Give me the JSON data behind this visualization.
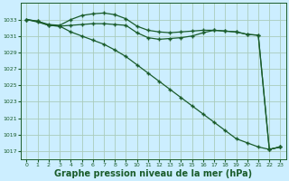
{
  "background_color": "#cceeff",
  "grid_color": "#aaccbb",
  "line_color": "#1a5c2a",
  "marker_color": "#1a5c2a",
  "xlabel": "Graphe pression niveau de la mer (hPa)",
  "xlabel_fontsize": 7,
  "ylim": [
    1016,
    1035
  ],
  "xlim": [
    -0.5,
    23.5
  ],
  "yticks": [
    1017,
    1019,
    1021,
    1023,
    1025,
    1027,
    1029,
    1031,
    1033
  ],
  "xticks": [
    0,
    1,
    2,
    3,
    4,
    5,
    6,
    7,
    8,
    9,
    10,
    11,
    12,
    13,
    14,
    15,
    16,
    17,
    18,
    19,
    20,
    21,
    22,
    23
  ],
  "series1_x": [
    0,
    1,
    2,
    3,
    4,
    5,
    6,
    7,
    8,
    9,
    10,
    11,
    12,
    13,
    14,
    15,
    16,
    17,
    18,
    19,
    20,
    21,
    22,
    23
  ],
  "series1_y": [
    1033.0,
    1032.8,
    1032.4,
    1032.3,
    1033.0,
    1033.5,
    1033.7,
    1033.8,
    1033.6,
    1033.1,
    1032.2,
    1031.7,
    1031.5,
    1031.4,
    1031.5,
    1031.6,
    1031.7,
    1031.7,
    1031.6,
    1031.5,
    1031.2,
    1031.1,
    1017.2,
    1017.5
  ],
  "series2_x": [
    0,
    1,
    2,
    3,
    4,
    5,
    6,
    7,
    8,
    9,
    10,
    11,
    12,
    13,
    14,
    15,
    16,
    17,
    18,
    19,
    20,
    21,
    22,
    23
  ],
  "series2_y": [
    1033.0,
    1032.7,
    1032.3,
    1032.2,
    1032.3,
    1032.4,
    1032.5,
    1032.5,
    1032.4,
    1032.3,
    1031.4,
    1030.8,
    1030.6,
    1030.7,
    1030.8,
    1031.0,
    1031.4,
    1031.7,
    1031.6,
    1031.5,
    1031.2,
    1031.1,
    1017.2,
    1017.5
  ],
  "series3_x": [
    0,
    1,
    2,
    3,
    4,
    5,
    6,
    7,
    8,
    9,
    10,
    11,
    12,
    13,
    14,
    15,
    16,
    17,
    18,
    19,
    20,
    21,
    22,
    23
  ],
  "series3_y": [
    1033.0,
    1032.8,
    1032.3,
    1032.2,
    1031.5,
    1031.0,
    1030.5,
    1030.0,
    1029.3,
    1028.5,
    1027.5,
    1026.5,
    1025.5,
    1024.5,
    1023.5,
    1022.5,
    1021.5,
    1020.5,
    1019.5,
    1018.5,
    1018.0,
    1017.5,
    1017.2,
    1017.5
  ]
}
